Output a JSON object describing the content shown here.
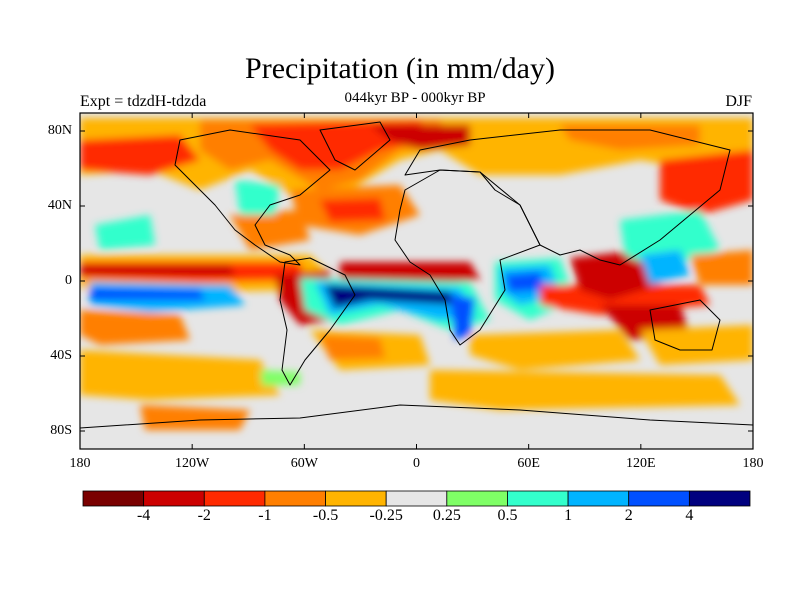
{
  "title": "Precipitation (in mm/day)",
  "subtitle": "044kyr BP - 000kyr BP",
  "experiment": "Expt = tdzdH-tdzda",
  "season": "DJF",
  "lat_labels": [
    "80N",
    "40N",
    "0",
    "40S",
    "80S"
  ],
  "lon_labels": [
    "180",
    "120W",
    "60W",
    "0",
    "60E",
    "120E",
    "180"
  ],
  "colorbar": {
    "colors": [
      "#7a0000",
      "#cc0000",
      "#ff2a00",
      "#ff7f00",
      "#ffb400",
      "#e6e6e6",
      "#7fff66",
      "#33ffcc",
      "#00b4ff",
      "#0050ff",
      "#00007f"
    ],
    "labels": [
      "-4",
      "-2",
      "-1",
      "-0.5",
      "-0.25",
      "0.25",
      "0.5",
      "1",
      "2",
      "4"
    ]
  },
  "palette": {
    "neutral": "#e6e6e6",
    "coast": "#000000"
  }
}
